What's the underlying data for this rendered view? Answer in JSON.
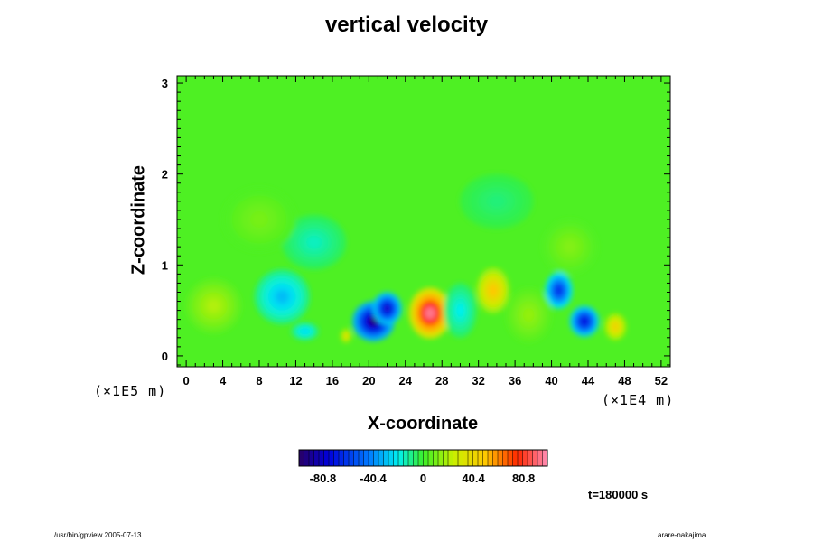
{
  "chart_data": {
    "type": "heatmap",
    "title": "vertical velocity",
    "xlabel": "X-coordinate",
    "ylabel": "Z-coordinate",
    "x_scale_label": "(×1E4 m)",
    "y_scale_label": "(×1E5 m)",
    "xlim": [
      -1,
      53
    ],
    "ylim": [
      -0.12,
      3.08
    ],
    "x_ticks": [
      "0",
      "4",
      "8",
      "12",
      "16",
      "20",
      "24",
      "28",
      "32",
      "36",
      "40",
      "44",
      "48",
      "52"
    ],
    "x_tick_values": [
      0,
      4,
      8,
      12,
      16,
      20,
      24,
      28,
      32,
      36,
      40,
      44,
      48,
      52
    ],
    "y_ticks": [
      "0",
      "1",
      "2",
      "3"
    ],
    "y_tick_values": [
      0,
      1,
      2,
      3
    ],
    "colorbar": {
      "min": -100,
      "max": 100,
      "tick_labels": [
        "-80.8",
        "-40.4",
        "0",
        "40.4",
        "80.8"
      ],
      "tick_values": [
        -80.8,
        -40.4,
        0,
        40.4,
        80.8
      ]
    },
    "features": [
      {
        "x": 20.5,
        "z": 0.38,
        "value": -95,
        "rx": 2.3,
        "rz": 0.22
      },
      {
        "x": 22.0,
        "z": 0.52,
        "value": -80,
        "rx": 1.6,
        "rz": 0.18
      },
      {
        "x": 26.7,
        "z": 0.47,
        "value": 95,
        "rx": 2.3,
        "rz": 0.28
      },
      {
        "x": 33.6,
        "z": 0.72,
        "value": 50,
        "rx": 1.8,
        "rz": 0.25
      },
      {
        "x": 40.8,
        "z": 0.72,
        "value": -65,
        "rx": 1.5,
        "rz": 0.2
      },
      {
        "x": 43.6,
        "z": 0.38,
        "value": -75,
        "rx": 1.6,
        "rz": 0.17
      },
      {
        "x": 47.0,
        "z": 0.32,
        "value": 45,
        "rx": 1.2,
        "rz": 0.15
      },
      {
        "x": 10.5,
        "z": 0.65,
        "value": -30,
        "rx": 3.0,
        "rz": 0.3
      },
      {
        "x": 13.0,
        "z": 0.27,
        "value": -25,
        "rx": 1.5,
        "rz": 0.1
      },
      {
        "x": 17.5,
        "z": 0.22,
        "value": 40,
        "rx": 0.6,
        "rz": 0.08
      },
      {
        "x": 30.0,
        "z": 0.5,
        "value": -20,
        "rx": 1.8,
        "rz": 0.3
      },
      {
        "x": 3.0,
        "z": 0.55,
        "value": 20,
        "rx": 3.0,
        "rz": 0.3
      },
      {
        "x": 37.5,
        "z": 0.45,
        "value": 15,
        "rx": 2.5,
        "rz": 0.3
      },
      {
        "x": 14.0,
        "z": 1.25,
        "value": -15,
        "rx": 3.5,
        "rz": 0.3
      },
      {
        "x": 42.0,
        "z": 1.2,
        "value": 12,
        "rx": 3.0,
        "rz": 0.3
      },
      {
        "x": 8.0,
        "z": 1.5,
        "value": 10,
        "rx": 4.0,
        "rz": 0.35
      },
      {
        "x": 34.0,
        "z": 1.7,
        "value": -8,
        "rx": 4.0,
        "rz": 0.3
      }
    ],
    "time_label": "t=180000 s"
  },
  "footer": {
    "left": "/usr/bin/gpview 2005-07-13",
    "right": "arare-nakajima"
  }
}
